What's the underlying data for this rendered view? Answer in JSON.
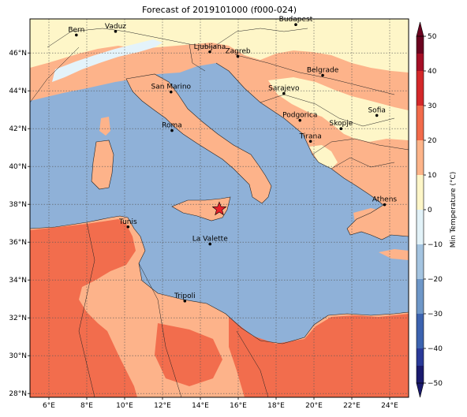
{
  "title": "Forecast of 2019101000 (f000-024)",
  "map": {
    "lon_range": [
      5.0,
      25.0
    ],
    "lat_range": [
      27.8,
      47.8
    ],
    "x_ticks": [
      {
        "lon": 6,
        "label": "6°E"
      },
      {
        "lon": 8,
        "label": "8°E"
      },
      {
        "lon": 10,
        "label": "10°E"
      },
      {
        "lon": 12,
        "label": "12°E"
      },
      {
        "lon": 14,
        "label": "14°E"
      },
      {
        "lon": 16,
        "label": "16°E"
      },
      {
        "lon": 18,
        "label": "18°E"
      },
      {
        "lon": 20,
        "label": "20°E"
      },
      {
        "lon": 22,
        "label": "22°E"
      },
      {
        "lon": 24,
        "label": "24°E"
      }
    ],
    "y_ticks": [
      {
        "lat": 28,
        "label": "28°N"
      },
      {
        "lat": 30,
        "label": "30°N"
      },
      {
        "lat": 32,
        "label": "32°N"
      },
      {
        "lat": 34,
        "label": "34°N"
      },
      {
        "lat": 36,
        "label": "36°N"
      },
      {
        "lat": 38,
        "label": "38°N"
      },
      {
        "lat": 40,
        "label": "40°N"
      },
      {
        "lat": 42,
        "label": "42°N"
      },
      {
        "lat": 44,
        "label": "44°N"
      },
      {
        "lat": 46,
        "label": "46°N"
      }
    ],
    "gridlines": true,
    "colors": {
      "sea": "#8fb1d8",
      "land": "#fdb38a",
      "warm": "#f26d4d",
      "cool": "#fef6c8",
      "cold": "#e4f3fa"
    }
  },
  "cities": [
    {
      "name": "Bern",
      "lon": 7.45,
      "lat": 46.95
    },
    {
      "name": "Vaduz",
      "lon": 9.52,
      "lat": 47.14
    },
    {
      "name": "Budapest",
      "lon": 19.04,
      "lat": 47.5
    },
    {
      "name": "Ljubljana",
      "lon": 14.5,
      "lat": 46.06
    },
    {
      "name": "Zagreb",
      "lon": 15.98,
      "lat": 45.82
    },
    {
      "name": "Belgrade",
      "lon": 20.46,
      "lat": 44.82
    },
    {
      "name": "San Marino",
      "lon": 12.45,
      "lat": 43.94
    },
    {
      "name": "Sarajevo",
      "lon": 18.41,
      "lat": 43.86
    },
    {
      "name": "Sofia",
      "lon": 23.32,
      "lat": 42.7
    },
    {
      "name": "Podgorica",
      "lon": 19.26,
      "lat": 42.44
    },
    {
      "name": "Skopje",
      "lon": 21.43,
      "lat": 42.0
    },
    {
      "name": "Roma",
      "lon": 12.5,
      "lat": 41.9
    },
    {
      "name": "Tirana",
      "lon": 19.82,
      "lat": 41.33
    },
    {
      "name": "Athens",
      "lon": 23.73,
      "lat": 37.98
    },
    {
      "name": "Tunis",
      "lon": 10.18,
      "lat": 36.81
    },
    {
      "name": "La Valette",
      "lon": 14.51,
      "lat": 35.9
    },
    {
      "name": "Tripoli",
      "lon": 13.18,
      "lat": 32.89
    }
  ],
  "marker": {
    "type": "star",
    "lon": 15.0,
    "lat": 37.75,
    "color": "#e8202a"
  },
  "colorbar": {
    "label": "Min Temperature (°C)",
    "min": -50,
    "max": 50,
    "ticks": [
      {
        "value": 50,
        "label": "50"
      },
      {
        "value": 40,
        "label": "40"
      },
      {
        "value": 30,
        "label": "30"
      },
      {
        "value": 20,
        "label": "20"
      },
      {
        "value": 10,
        "label": "10"
      },
      {
        "value": 0,
        "label": "0"
      },
      {
        "value": -10,
        "label": "−10"
      },
      {
        "value": -20,
        "label": "−20"
      },
      {
        "value": -30,
        "label": "−30"
      },
      {
        "value": -40,
        "label": "−40"
      },
      {
        "value": -50,
        "label": "−50"
      }
    ],
    "bins": [
      {
        "from": -55,
        "to": -45,
        "color": "#1a1a6e"
      },
      {
        "from": -45,
        "to": -40,
        "color": "#2a3a99"
      },
      {
        "from": -40,
        "to": -30,
        "color": "#3c63b0"
      },
      {
        "from": -30,
        "to": -20,
        "color": "#6e97c8"
      },
      {
        "from": -20,
        "to": -10,
        "color": "#a4c4e0"
      },
      {
        "from": -10,
        "to": 0,
        "color": "#e2f2f8"
      },
      {
        "from": 0,
        "to": 10,
        "color": "#fdf6c8"
      },
      {
        "from": 10,
        "to": 20,
        "color": "#fdb489"
      },
      {
        "from": 20,
        "to": 30,
        "color": "#f26b4b"
      },
      {
        "from": 30,
        "to": 40,
        "color": "#d4282a"
      },
      {
        "from": 40,
        "to": 45,
        "color": "#a50e26"
      },
      {
        "from": 45,
        "to": 55,
        "color": "#6b0320"
      }
    ]
  }
}
